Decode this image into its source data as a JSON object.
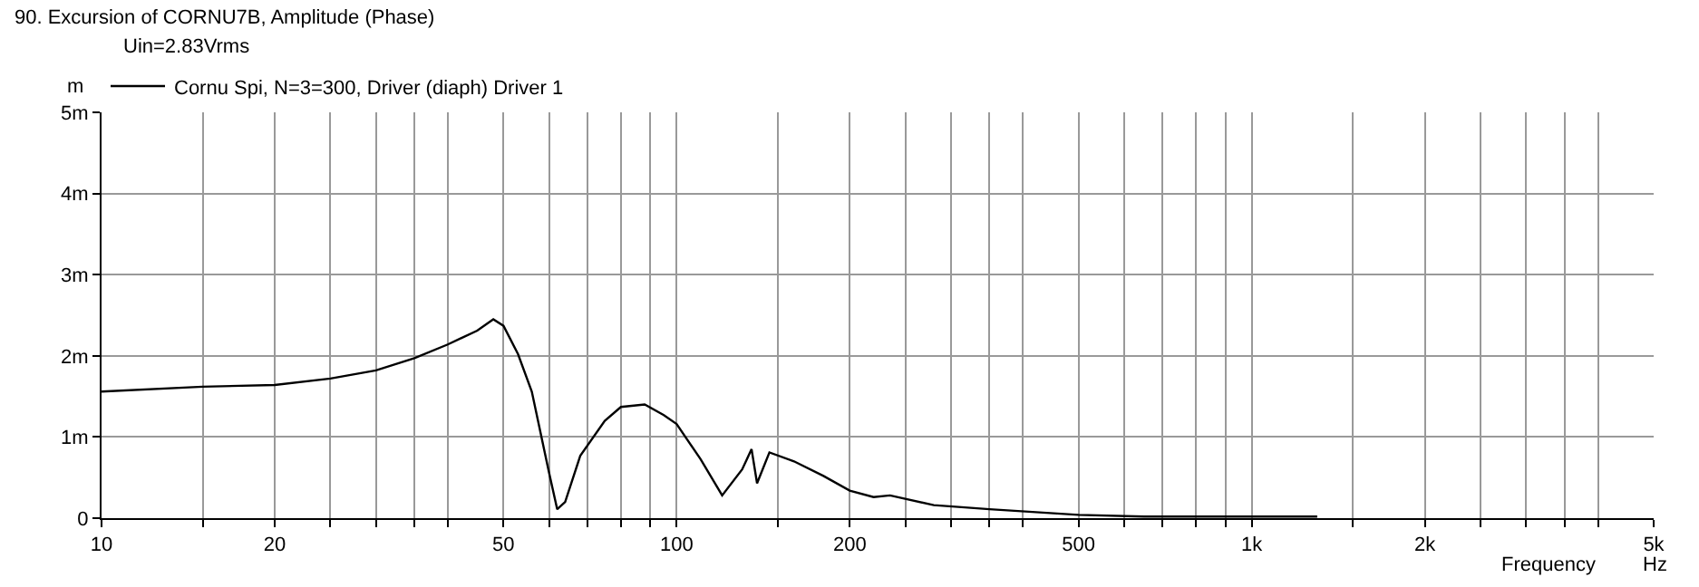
{
  "chart_data": {
    "type": "line",
    "title": "90. Excursion of CORNU7B, Amplitude (Phase)",
    "subtitle": "Uin=2.83Vrms",
    "xlabel": "Frequency",
    "ylabel": "m",
    "annotations": [
      "Hz"
    ],
    "log": "x",
    "grid": true,
    "legend": "top left",
    "marker": "none",
    "line_style": "solid",
    "xlim": [
      10,
      5000
    ],
    "ylim": [
      0,
      5
    ],
    "xticks": [
      10,
      {
        "value": 15,
        "label": null
      },
      20,
      {
        "value": 25,
        "label": null
      },
      {
        "value": 30,
        "label": null
      },
      {
        "value": 35,
        "label": null
      },
      {
        "value": 40,
        "label": null
      },
      50,
      {
        "value": 60,
        "label": null
      },
      {
        "value": 70,
        "label": null
      },
      {
        "value": 80,
        "label": null
      },
      {
        "value": 90,
        "label": null
      },
      100,
      {
        "value": 150,
        "label": null
      },
      200,
      {
        "value": 250,
        "label": null
      },
      {
        "value": 300,
        "label": null
      },
      {
        "value": 350,
        "label": null
      },
      {
        "value": 400,
        "label": null
      },
      500,
      {
        "value": 600,
        "label": null
      },
      {
        "value": 700,
        "label": null
      },
      {
        "value": 800,
        "label": null
      },
      {
        "value": 900,
        "label": null
      },
      {
        "value": 1000,
        "label": "1k"
      },
      {
        "value": 1500,
        "label": null
      },
      {
        "value": 2000,
        "label": "2k"
      },
      {
        "value": 2500,
        "label": null
      },
      {
        "value": 3000,
        "label": null
      },
      {
        "value": 3500,
        "label": null
      },
      {
        "value": 4000,
        "label": null
      },
      {
        "value": 5000,
        "label": "5k"
      }
    ],
    "yticks": [
      0,
      {
        "value": 1,
        "label": "1m"
      },
      {
        "value": 2,
        "label": "2m"
      },
      {
        "value": 3,
        "label": "3m"
      },
      {
        "value": 4,
        "label": "4m"
      },
      {
        "value": 5,
        "label": "5m"
      }
    ],
    "x": [
      10,
      15,
      20,
      25,
      30,
      35,
      40,
      45,
      48,
      50,
      53,
      56,
      60,
      62,
      64,
      68,
      75,
      80,
      88,
      95,
      100,
      110,
      120,
      130,
      135,
      138,
      145,
      160,
      180,
      200,
      220,
      235,
      280,
      350,
      500,
      650,
      1000,
      1300
    ],
    "series": [
      {
        "name": "Cornu Spi, N=3=300, Driver (diaph) Driver 1",
        "color": "#000000",
        "values": [
          1.56,
          1.62,
          1.64,
          1.72,
          1.82,
          1.97,
          2.14,
          2.31,
          2.45,
          2.37,
          2.02,
          1.56,
          0.56,
          0.11,
          0.2,
          0.77,
          1.2,
          1.37,
          1.4,
          1.27,
          1.16,
          0.73,
          0.28,
          0.6,
          0.85,
          0.43,
          0.81,
          0.7,
          0.52,
          0.34,
          0.26,
          0.28,
          0.16,
          0.11,
          0.04,
          0.02,
          0.02,
          0.02
        ]
      }
    ]
  }
}
